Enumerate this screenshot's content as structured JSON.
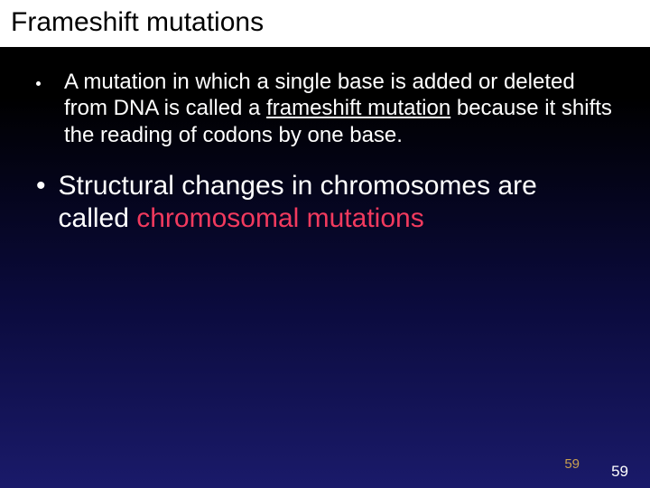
{
  "title": "Frameshift mutations",
  "bullets": [
    {
      "pre": "A mutation in which a single base is added or deleted from DNA is called a ",
      "underlined": "frameshift mutation",
      "post": " because it shifts the reading of codons by one base."
    },
    {
      "pre": "Structural changes in chromosomes are called ",
      "highlight": "chromosomal mutations"
    }
  ],
  "page_inner": "59",
  "page_outer": "59",
  "colors": {
    "highlight": "#f23a5e",
    "page_inner": "#c9a050",
    "title_bg": "#ffffff",
    "text": "#ffffff"
  },
  "fonts": {
    "title_size": 30,
    "bullet1_size": 24,
    "bullet2_size": 30
  }
}
